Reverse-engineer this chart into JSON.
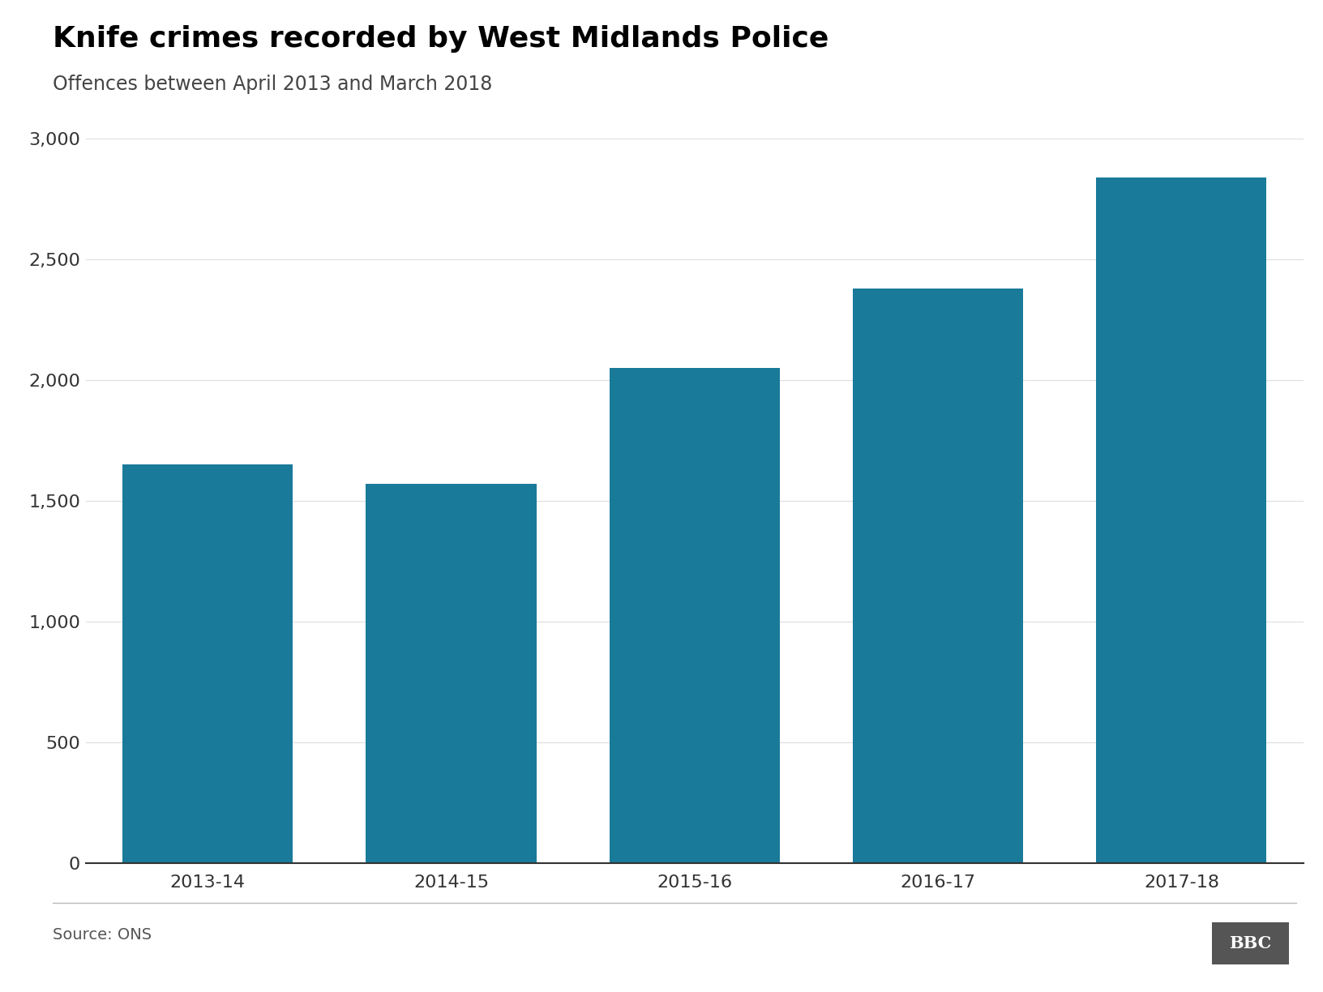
{
  "title": "Knife crimes recorded by West Midlands Police",
  "subtitle": "Offences between April 2013 and March 2018",
  "categories": [
    "2013-14",
    "2014-15",
    "2015-16",
    "2016-17",
    "2017-18"
  ],
  "values": [
    1650,
    1570,
    2050,
    2380,
    2840
  ],
  "bar_color": "#1a7a9a",
  "ylim": [
    0,
    3000
  ],
  "yticks": [
    0,
    500,
    1000,
    1500,
    2000,
    2500,
    3000
  ],
  "background_color": "#ffffff",
  "title_fontsize": 26,
  "subtitle_fontsize": 17,
  "tick_fontsize": 16,
  "source_text": "Source: ONS",
  "bbc_text": "BBC",
  "bar_width": 0.7
}
